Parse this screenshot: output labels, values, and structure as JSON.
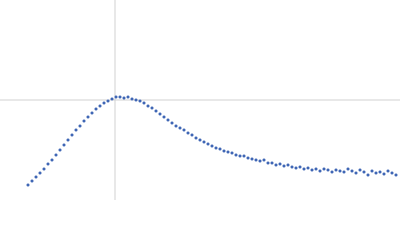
{
  "chart_data": {
    "type": "scatter",
    "x": [
      28,
      32,
      36,
      40,
      44,
      48,
      52,
      56,
      60,
      64,
      68,
      72,
      76,
      80,
      84,
      88,
      92,
      96,
      100,
      104,
      108,
      112,
      116,
      120,
      124,
      128,
      132,
      136,
      140,
      144,
      148,
      152,
      156,
      160,
      164,
      168,
      172,
      176,
      180,
      184,
      188,
      192,
      196,
      200,
      204,
      208,
      212,
      216,
      220,
      224,
      228,
      232,
      236,
      240,
      244,
      248,
      252,
      256,
      260,
      264,
      268,
      272,
      276,
      280,
      284,
      288,
      292,
      296,
      300,
      304,
      308,
      312,
      316,
      320,
      324,
      328,
      332,
      336,
      340,
      344,
      348,
      352,
      356,
      360,
      364,
      368,
      372,
      376,
      380,
      384,
      388,
      392,
      396
    ],
    "values": [
      15,
      19,
      23,
      27,
      31,
      36,
      40,
      45,
      50,
      55,
      60,
      65,
      70,
      74,
      79,
      83,
      87,
      91,
      94,
      97,
      99,
      101,
      103,
      103,
      102,
      103,
      101,
      100,
      99,
      97,
      94,
      92,
      89,
      86,
      83,
      80,
      77,
      74,
      72,
      70,
      67,
      65,
      62,
      60,
      58,
      56,
      54,
      52,
      51,
      49,
      48,
      47,
      45,
      44,
      44,
      42,
      41,
      40,
      39,
      40,
      37,
      37,
      35,
      36,
      34,
      35,
      33,
      32,
      33,
      31,
      32,
      30,
      31,
      29,
      31,
      30,
      28,
      30,
      29,
      28,
      31,
      29,
      27,
      30,
      28,
      25,
      29,
      27,
      28,
      26,
      29,
      27,
      25
    ],
    "color": "#3f66b5",
    "xlim": [
      0,
      400
    ],
    "ylim": [
      0,
      200
    ],
    "crosshair": {
      "x": 115,
      "y": 100
    }
  }
}
